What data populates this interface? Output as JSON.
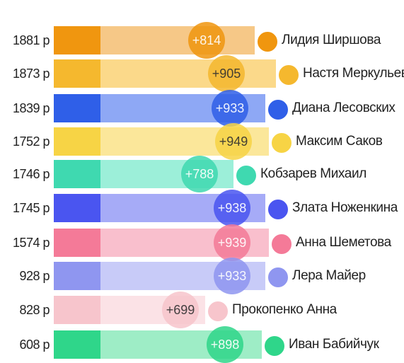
{
  "rows": [
    {
      "total": "1881 р",
      "delta": "+814",
      "name": "Лидия Ширшова",
      "dark": "#f0960f",
      "light": "#f6c887"
    },
    {
      "total": "1873 р",
      "delta": "+905",
      "name": "Настя Меркульева",
      "dark": "#f5b82e",
      "light": "#fbd98a"
    },
    {
      "total": "1839 р",
      "delta": "+933",
      "name": "Диана Лесовских",
      "dark": "#2f5fe8",
      "light": "#8ea8f5"
    },
    {
      "total": "1752 р",
      "delta": "+949",
      "name": "Максим Саков",
      "dark": "#f7d445",
      "light": "#fbe79a"
    },
    {
      "total": "1746 р",
      "delta": "+788",
      "name": "Кобзарев Михаил",
      "dark": "#3fd9b0",
      "light": "#9cefd9"
    },
    {
      "total": "1745 р",
      "delta": "+938",
      "name": "Злата Ноженкина",
      "dark": "#4a55f0",
      "light": "#a6abf7"
    },
    {
      "total": "1574 р",
      "delta": "+939",
      "name": "Анна Шеметова",
      "dark": "#f47a98",
      "light": "#f9bfcd"
    },
    {
      "total": "928 р",
      "delta": "+933",
      "name": "Лера Майер",
      "dark": "#8f96f0",
      "light": "#c8cbf8"
    },
    {
      "total": "828 р",
      "delta": "+699",
      "name": "Прокопенко Анна",
      "dark": "#f7c5cc",
      "light": "#fbe2e6"
    },
    {
      "total": "608 р",
      "delta": "+898",
      "name": "Иван Бабийчук",
      "dark": "#2fd68a",
      "light": "#9eedc6"
    }
  ]
}
